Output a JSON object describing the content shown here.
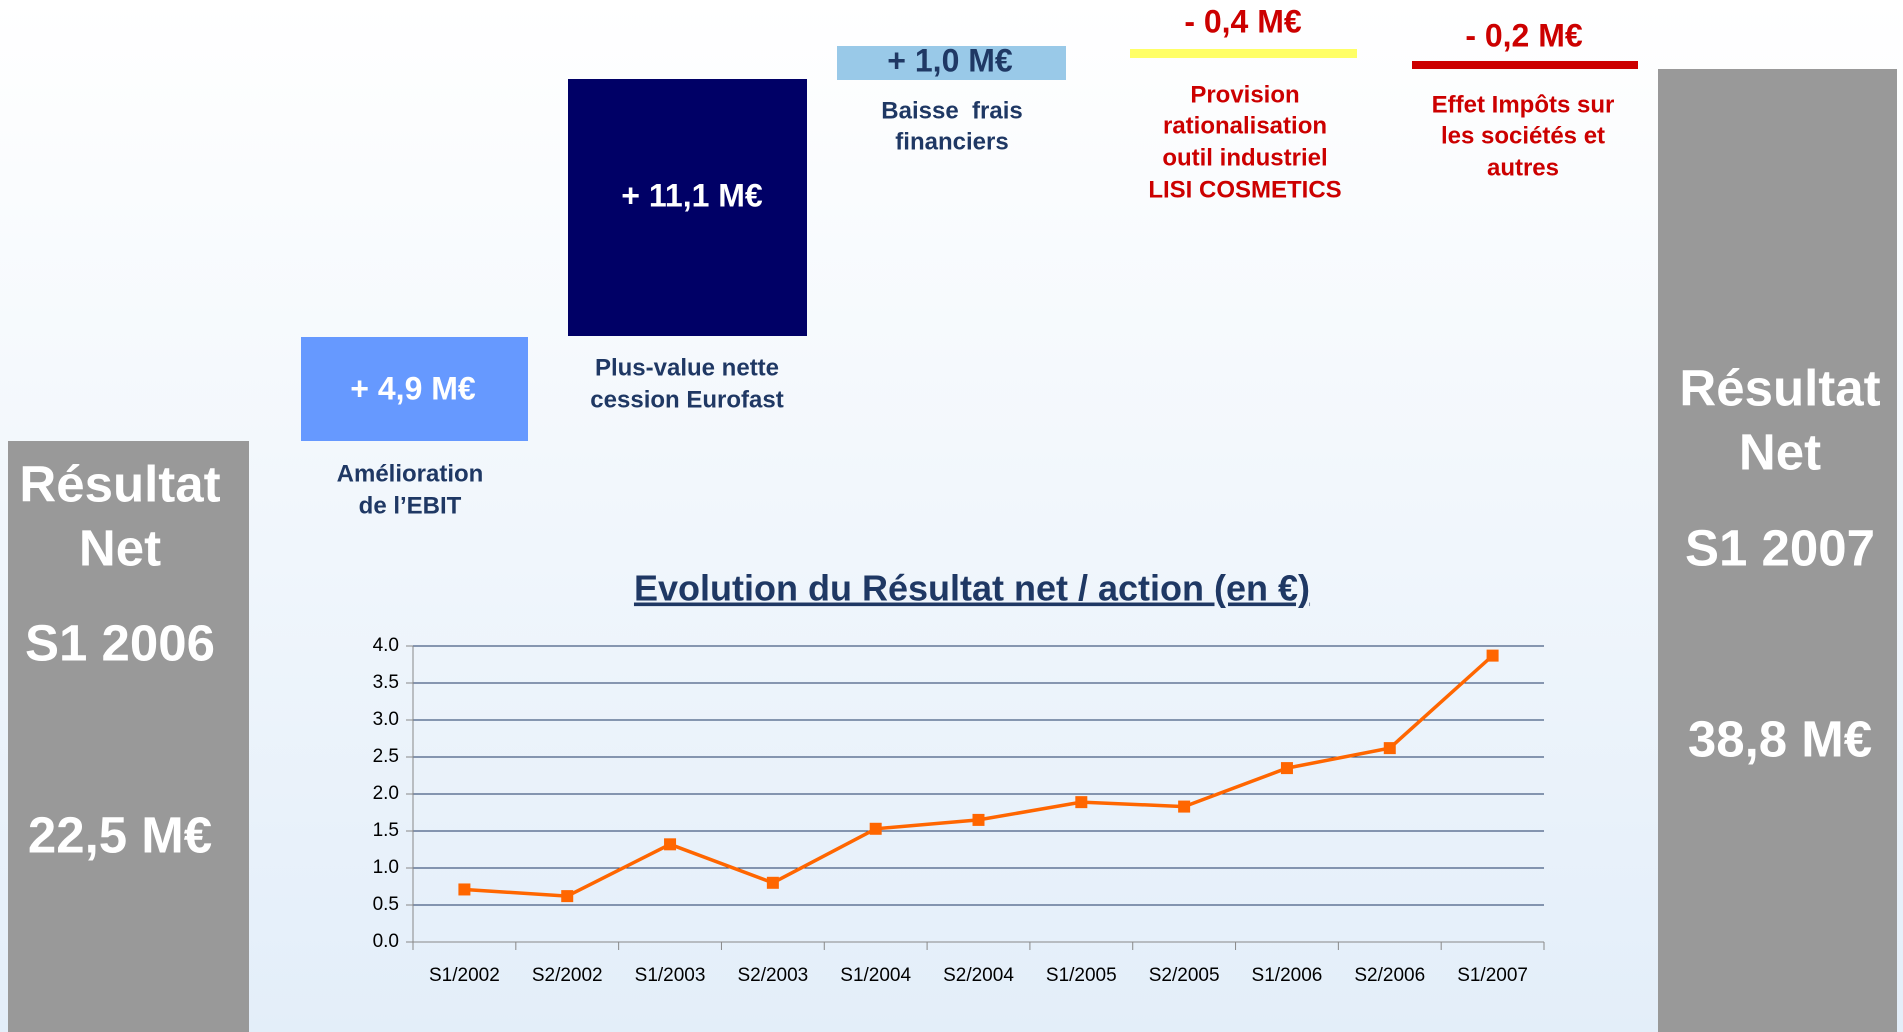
{
  "slide": {
    "start": {
      "lines": [
        "Résultat",
        "Net",
        "S1 2006",
        "22,5 M€"
      ]
    },
    "end": {
      "lines": [
        "Résultat",
        "Net",
        "S1 2007",
        "38,8 M€"
      ]
    },
    "steps": [
      {
        "value_label": "+ 4,9 M€",
        "caption": [
          "Amélioration",
          "de l’EBIT"
        ]
      },
      {
        "value_label": "+ 11,1 M€",
        "caption": [
          "Plus-value nette",
          "cession Eurofast"
        ]
      },
      {
        "value_label": "+ 1,0 M€",
        "caption": [
          "Baisse  frais",
          "financiers"
        ]
      },
      {
        "value_label": "- 0,4 M€",
        "caption": [
          "Provision",
          "rationalisation",
          "outil industriel",
          "LISI COSMETICS"
        ]
      },
      {
        "value_label": "- 0,2 M€",
        "caption": [
          "Effet Impôts sur",
          "les sociétés et",
          "autres"
        ]
      }
    ]
  },
  "chart_data": {
    "type": "line",
    "title": "Evolution du Résultat net / action (en €)",
    "categories": [
      "S1/2002",
      "S2/2002",
      "S1/2003",
      "S2/2003",
      "S1/2004",
      "S2/2004",
      "S1/2005",
      "S2/2005",
      "S1/2006",
      "S2/2006",
      "S1/2007"
    ],
    "series": [
      {
        "name": "Résultat net / action",
        "color": "#ff6600",
        "values": [
          0.71,
          0.62,
          1.32,
          0.8,
          1.53,
          1.65,
          1.89,
          1.83,
          2.35,
          2.62,
          3.87
        ]
      }
    ],
    "ylim": [
      0,
      4
    ],
    "yticks": [
      {
        "value": 0,
        "label": "0.0"
      },
      0.5,
      {
        "value": 1,
        "label": "1.0"
      },
      1.5,
      {
        "value": 2,
        "label": "2.0"
      },
      2.5,
      {
        "value": 3,
        "label": "3.0"
      },
      3.5,
      {
        "value": 4,
        "label": "4.0"
      }
    ],
    "grid": true
  }
}
